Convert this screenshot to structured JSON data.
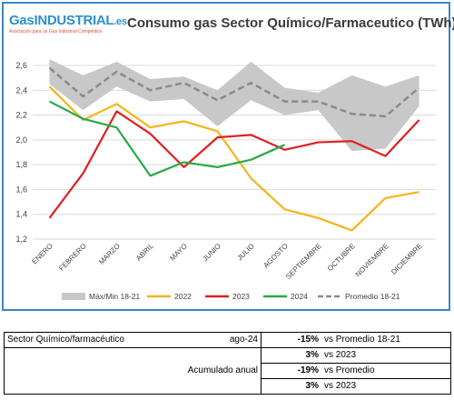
{
  "logo": {
    "text_main": "GasINDUSTRIAL",
    "text_suffix": ".es",
    "tagline": "Asociación para un Gas Industrial Competitivo"
  },
  "chart_data": {
    "type": "line",
    "title": "Consumo gas Sector Químico/Farmaceutico (TWh)",
    "categories": [
      "ENERO",
      "FEBRERO",
      "MARZO",
      "ABRIL",
      "MAYO",
      "JUNIO",
      "JULIO",
      "AGOSTO",
      "SEPTIEMBRE",
      "OCTUBRE",
      "NOVIEMBRE",
      "DICIEMBRE"
    ],
    "ylim": [
      1.2,
      2.6
    ],
    "yticks": [
      "1,2",
      "1,4",
      "1,6",
      "1,8",
      "2,0",
      "2,2",
      "2,4",
      "2,6"
    ],
    "grid": true,
    "legend_position": "bottom",
    "band": {
      "name": "Máx/Min 18-21",
      "max": [
        2.65,
        2.52,
        2.63,
        2.49,
        2.51,
        2.4,
        2.63,
        2.42,
        2.38,
        2.52,
        2.43,
        2.52
      ],
      "min": [
        2.45,
        2.24,
        2.43,
        2.31,
        2.33,
        2.11,
        2.32,
        2.2,
        2.24,
        1.91,
        1.93,
        2.27
      ],
      "color": "#c8c8c8"
    },
    "series": [
      {
        "name": "2022",
        "values": [
          2.43,
          2.16,
          2.29,
          2.1,
          2.15,
          2.07,
          1.69,
          1.44,
          1.37,
          1.27,
          1.53,
          1.58
        ],
        "color": "#f5b41a",
        "dash": false
      },
      {
        "name": "2023",
        "values": [
          1.37,
          1.73,
          2.23,
          2.05,
          1.78,
          2.02,
          2.04,
          1.92,
          1.98,
          1.99,
          1.87,
          2.16
        ],
        "color": "#e02020",
        "dash": false
      },
      {
        "name": "2024",
        "values": [
          2.31,
          2.17,
          2.1,
          1.71,
          1.82,
          1.78,
          1.84,
          1.96,
          null,
          null,
          null,
          null
        ],
        "color": "#2aa84a",
        "dash": false
      },
      {
        "name": "Promedio 18-21",
        "values": [
          2.58,
          2.35,
          2.55,
          2.4,
          2.46,
          2.32,
          2.46,
          2.31,
          2.31,
          2.21,
          2.19,
          2.42
        ],
        "color": "#8a8a8a",
        "dash": true
      }
    ]
  },
  "summary": {
    "label": "Sector Químico/farmacéutico",
    "period": "ago-24",
    "row1_value": "-15%",
    "row1_text": "vs Promedio 18-21",
    "row2_value": "3%",
    "row2_text": "vs 2023",
    "cumulative_label": "Acumulado anual",
    "row3_value": "-19%",
    "row3_text": "vs Promedio",
    "row4_value": "3%",
    "row4_text": "vs 2023"
  }
}
